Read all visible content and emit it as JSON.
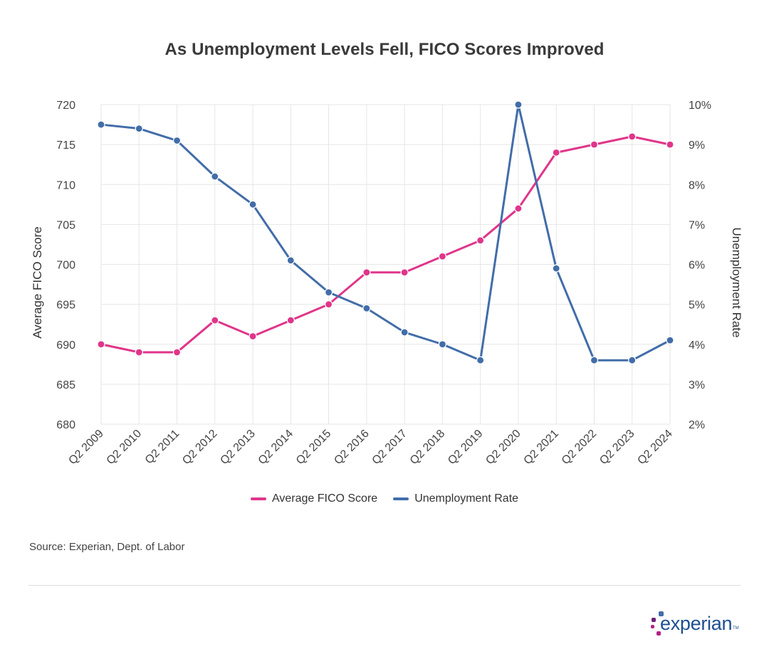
{
  "chart_data": {
    "type": "line",
    "title": "As Unemployment Levels Fell, FICO Scores Improved",
    "categories": [
      "Q2 2009",
      "Q2 2010",
      "Q2 2011",
      "Q2 2012",
      "Q2 2013",
      "Q2 2014",
      "Q2 2015",
      "Q2 2016",
      "Q2 2017",
      "Q2 2018",
      "Q2 2019",
      "Q2 2020",
      "Q2 2021",
      "Q2 2022",
      "Q2 2023",
      "Q2 2024"
    ],
    "series": [
      {
        "name": "Average FICO Score",
        "axis": "left",
        "color": "#e0358a",
        "values": [
          690,
          689,
          689,
          693,
          691,
          693,
          695,
          699,
          699,
          701,
          703,
          707,
          714,
          715,
          716,
          715
        ]
      },
      {
        "name": "Unemployment Rate",
        "axis": "right",
        "color": "#426da9",
        "values": [
          9.5,
          9.4,
          9.1,
          8.2,
          7.5,
          6.1,
          5.3,
          4.9,
          4.3,
          4.0,
          3.6,
          10.0,
          5.9,
          3.6,
          3.6,
          4.1
        ]
      }
    ],
    "y_left": {
      "label": "Average FICO Score",
      "ylim": [
        680,
        720
      ],
      "ticks": [
        "680",
        "685",
        "690",
        "695",
        "700",
        "705",
        "710",
        "715",
        "720"
      ]
    },
    "y_right": {
      "label": "Unemployment Rate",
      "ylim": [
        2,
        10
      ],
      "ticks": [
        "2%",
        "3%",
        "4%",
        "5%",
        "6%",
        "7%",
        "8%",
        "9%",
        "10%"
      ]
    },
    "grid": true,
    "legend": "bottom-center"
  },
  "source": "Source: Experian, Dept. of Labor",
  "logo_text": "experian",
  "logo_tm": "TM"
}
